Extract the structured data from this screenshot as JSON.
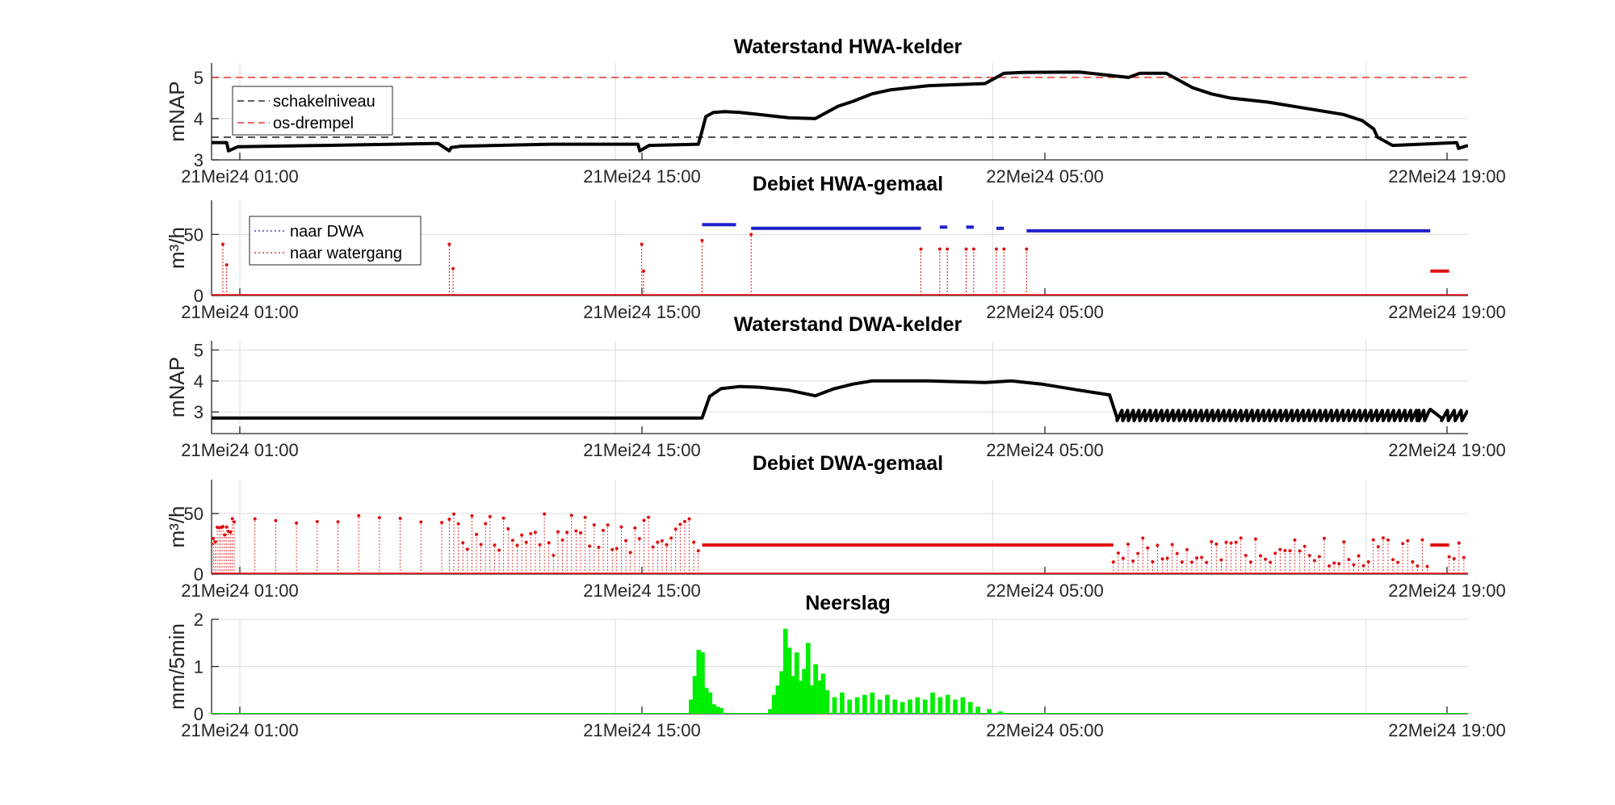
{
  "figure": {
    "x_ticks": [
      "21Mei24 01:00",
      "21Mei24 15:00",
      "22Mei24 05:00",
      "22Mei24 19:00"
    ],
    "colors": {
      "black": "#000000",
      "red": "#e01010",
      "blue": "#1f1fcc",
      "green": "#00ee00",
      "grid": "#dcdcdc",
      "axis": "#262626"
    }
  },
  "chart_data": [
    {
      "type": "line",
      "title": "Waterstand HWA-kelder",
      "ylabel": "mNAP",
      "x_unit": "hours since 21Mei24 00:00",
      "xlim": [
        0,
        33.3
      ],
      "ylim": [
        3,
        5.35
      ],
      "yticks": [
        3,
        4,
        5
      ],
      "grid": true,
      "legend": {
        "placement": "top-left",
        "entries": [
          "schakelniveau",
          "os-drempel"
        ]
      },
      "reference_lines": [
        {
          "name": "schakelniveau",
          "y": 3.55,
          "color": "#000000",
          "style": "dashed"
        },
        {
          "name": "os-drempel",
          "y": 5.0,
          "color": "#e01010",
          "style": "dashed"
        }
      ],
      "series": [
        {
          "name": "waterstand",
          "color": "#000000",
          "x": [
            0,
            0.4,
            0.45,
            0.7,
            3,
            6,
            6.3,
            6.35,
            6.6,
            9,
            11.3,
            11.35,
            11.6,
            12.9,
            13,
            13.1,
            13.3,
            13.6,
            14,
            14.5,
            15.3,
            16,
            16.4,
            16.6,
            17,
            17.5,
            18,
            19,
            20.5,
            21,
            21.5,
            23,
            24.3,
            24.6,
            25.3,
            26,
            26.5,
            27,
            28,
            29,
            30,
            30.5,
            30.8,
            30.9,
            31.3,
            33,
            33.05,
            33.3
          ],
          "y": [
            3.42,
            3.42,
            3.22,
            3.32,
            3.35,
            3.4,
            3.22,
            3.3,
            3.33,
            3.38,
            3.38,
            3.22,
            3.35,
            3.38,
            3.7,
            4.05,
            4.15,
            4.17,
            4.15,
            4.1,
            4.02,
            4.0,
            4.2,
            4.3,
            4.42,
            4.6,
            4.7,
            4.8,
            4.85,
            5.1,
            5.12,
            5.13,
            5.0,
            5.1,
            5.1,
            4.75,
            4.6,
            4.5,
            4.4,
            4.25,
            4.1,
            3.95,
            3.75,
            3.55,
            3.35,
            3.42,
            3.28,
            3.35
          ]
        }
      ]
    },
    {
      "type": "scatter",
      "title": "Debiet HWA-gemaal",
      "ylabel": "m³/h",
      "xlim": [
        0,
        33.3
      ],
      "ylim": [
        0,
        78
      ],
      "yticks": [
        0,
        50
      ],
      "grid": true,
      "legend": {
        "placement": "top-left",
        "entries": [
          "naar DWA",
          "naar watergang"
        ]
      },
      "series": [
        {
          "name": "naar DWA",
          "color": "#1f1fcc",
          "segments": [
            {
              "x_start": 13.0,
              "x_end": 13.9,
              "y": 58
            },
            {
              "x_start": 14.3,
              "x_end": 18.8,
              "y": 55
            },
            {
              "x_start": 19.3,
              "x_end": 19.5,
              "y": 56
            },
            {
              "x_start": 20.0,
              "x_end": 20.2,
              "y": 56
            },
            {
              "x_start": 20.8,
              "x_end": 21.0,
              "y": 55
            },
            {
              "x_start": 21.6,
              "x_end": 32.3,
              "y": 53
            }
          ]
        },
        {
          "name": "naar watergang",
          "color": "#e01010",
          "baseline": 0,
          "spikes": [
            {
              "x": 0.3,
              "y": 42
            },
            {
              "x": 0.4,
              "y": 25
            },
            {
              "x": 6.3,
              "y": 42
            },
            {
              "x": 6.4,
              "y": 22
            },
            {
              "x": 11.4,
              "y": 42
            },
            {
              "x": 11.45,
              "y": 20
            },
            {
              "x": 13.0,
              "y": 45
            },
            {
              "x": 14.3,
              "y": 50
            },
            {
              "x": 18.8,
              "y": 38
            },
            {
              "x": 19.3,
              "y": 38
            },
            {
              "x": 19.5,
              "y": 38
            },
            {
              "x": 20.0,
              "y": 38
            },
            {
              "x": 20.2,
              "y": 38
            },
            {
              "x": 20.8,
              "y": 38
            },
            {
              "x": 21.0,
              "y": 38
            },
            {
              "x": 21.6,
              "y": 38
            }
          ],
          "segments": [
            {
              "x_start": 32.3,
              "x_end": 32.8,
              "y": 20
            }
          ]
        }
      ]
    },
    {
      "type": "line",
      "title": "Waterstand DWA-kelder",
      "ylabel": "mNAP",
      "xlim": [
        0,
        33.3
      ],
      "ylim": [
        2.3,
        5.3
      ],
      "yticks": [
        3,
        4,
        5
      ],
      "grid": true,
      "series": [
        {
          "name": "waterstand",
          "color": "#000000",
          "x": [
            0,
            13.0,
            13.2,
            13.5,
            14,
            14.5,
            15.3,
            16,
            16.5,
            17,
            17.5,
            19,
            20.5,
            21.2,
            22,
            23,
            23.8,
            24.0,
            32,
            32.3,
            32.6,
            33.3
          ],
          "y": [
            2.8,
            2.8,
            3.5,
            3.75,
            3.82,
            3.8,
            3.7,
            3.52,
            3.75,
            3.9,
            4.0,
            4.0,
            3.95,
            4.0,
            3.9,
            3.7,
            3.55,
            2.8,
            2.8,
            3.08,
            2.8,
            2.8
          ],
          "oscillation": {
            "low": 2.72,
            "high": 3.05,
            "cycles": [
              {
                "x_start": 0,
                "x_end": 6.3,
                "period": 0.55
              },
              {
                "x_start": 6.3,
                "x_end": 13.0,
                "period": 0.18
              },
              {
                "x_start": 24.0,
                "x_end": 32.3,
                "period": 0.15
              },
              {
                "x_start": 32.6,
                "x_end": 33.3,
                "period": 0.18
              }
            ]
          }
        }
      ]
    },
    {
      "type": "scatter",
      "title": "Debiet DWA-gemaal",
      "ylabel": "m³/h",
      "xlim": [
        0,
        33.3
      ],
      "ylim": [
        0,
        78
      ],
      "yticks": [
        0,
        50
      ],
      "grid": true,
      "series": [
        {
          "name": "debiet",
          "color": "#e01010",
          "baseline": 0,
          "spike_blocks": [
            {
              "x_start": 0,
              "x_end": 0.6,
              "period": 0.05,
              "y_min": 25,
              "y_max": 47
            },
            {
              "x_start": 0.6,
              "x_end": 6.3,
              "period": 0.55,
              "y_min": 40,
              "y_max": 50
            },
            {
              "x_start": 6.3,
              "x_end": 13.0,
              "period": 0.12,
              "y_min": 15,
              "y_max": 50
            },
            {
              "x_start": 23.9,
              "x_end": 32.3,
              "period": 0.13,
              "y_min": 5,
              "y_max": 30
            },
            {
              "x_start": 32.8,
              "x_end": 33.3,
              "period": 0.13,
              "y_min": 10,
              "y_max": 30
            }
          ],
          "segments": [
            {
              "x_start": 13.0,
              "x_end": 23.9,
              "y": 24
            },
            {
              "x_start": 32.3,
              "x_end": 32.8,
              "y": 24
            }
          ]
        }
      ]
    },
    {
      "type": "bar",
      "title": "Neerslag",
      "ylabel": "mm/5min",
      "xlim": [
        0,
        33.3
      ],
      "ylim": [
        0,
        2
      ],
      "yticks": [
        0,
        1,
        2
      ],
      "grid": true,
      "series": [
        {
          "name": "neerslag",
          "color": "#00ee00",
          "x": [
            12.7,
            12.8,
            12.9,
            13.0,
            13.1,
            13.2,
            13.3,
            13.4,
            13.5,
            14.8,
            14.9,
            15.0,
            15.1,
            15.2,
            15.3,
            15.4,
            15.5,
            15.6,
            15.7,
            15.8,
            15.9,
            16.0,
            16.1,
            16.2,
            16.3,
            16.5,
            16.7,
            16.9,
            17.1,
            17.3,
            17.5,
            17.7,
            17.9,
            18.1,
            18.3,
            18.5,
            18.7,
            18.9,
            19.1,
            19.3,
            19.5,
            19.7,
            19.9,
            20.1,
            20.3,
            20.6,
            20.9
          ],
          "values": [
            0.3,
            0.8,
            1.35,
            1.3,
            0.55,
            0.45,
            0.2,
            0.15,
            0.12,
            0.1,
            0.4,
            0.6,
            0.9,
            1.8,
            1.4,
            0.8,
            1.3,
            0.7,
            0.95,
            1.5,
            0.6,
            1.05,
            0.7,
            0.85,
            0.5,
            0.35,
            0.45,
            0.3,
            0.35,
            0.4,
            0.45,
            0.3,
            0.4,
            0.3,
            0.25,
            0.3,
            0.35,
            0.3,
            0.45,
            0.35,
            0.4,
            0.3,
            0.35,
            0.25,
            0.15,
            0.1,
            0.05
          ]
        }
      ]
    }
  ]
}
